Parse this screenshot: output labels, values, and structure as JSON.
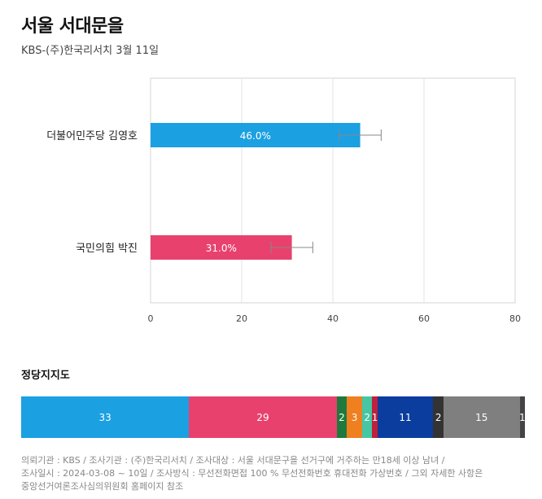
{
  "header": {
    "title": "서울 서대문을",
    "subtitle": "KBS-(주)한국리서치 3월 11일"
  },
  "chart_data": [
    {
      "type": "bar",
      "orientation": "horizontal",
      "categories": [
        "더불어민주당 김영호",
        "국민의힘 박진"
      ],
      "values": [
        46.0,
        31.0
      ],
      "value_labels": [
        "46.0%",
        "31.0%"
      ],
      "error_margin": 4.6,
      "colors": [
        "#1ba0e2",
        "#e8416e"
      ],
      "xlim": [
        0,
        80
      ],
      "xticks": [
        0,
        20,
        40,
        60,
        80
      ],
      "grid": true,
      "title": "서울 서대문을"
    },
    {
      "type": "bar",
      "orientation": "stacked-horizontal",
      "title": "정당지지도",
      "values": [
        33,
        29,
        2,
        3,
        2,
        1,
        11,
        2,
        15,
        1
      ],
      "colors": [
        "#1ba0e2",
        "#e8416e",
        "#1e7a3c",
        "#f07f1f",
        "#45c7a4",
        "#c0203b",
        "#0a3d9e",
        "#333333",
        "#7f7f7f",
        "#444444"
      ]
    }
  ],
  "footnote": {
    "lines": [
      "의뢰기관 : KBS / 조사기관 : (주)한국리서치 / 조사대상 : 서울 서대문구을 선거구에 거주하는 만18세 이상 남녀 /",
      "조사일시 : 2024-03-08 ~ 10일 / 조사방식 : 무선전화면접 100 % 무선전화번호 휴대전화 가상번호 / 그외 자세한 사항은",
      "중앙선거여론조사심의위원회 홈페이지 참조"
    ]
  }
}
